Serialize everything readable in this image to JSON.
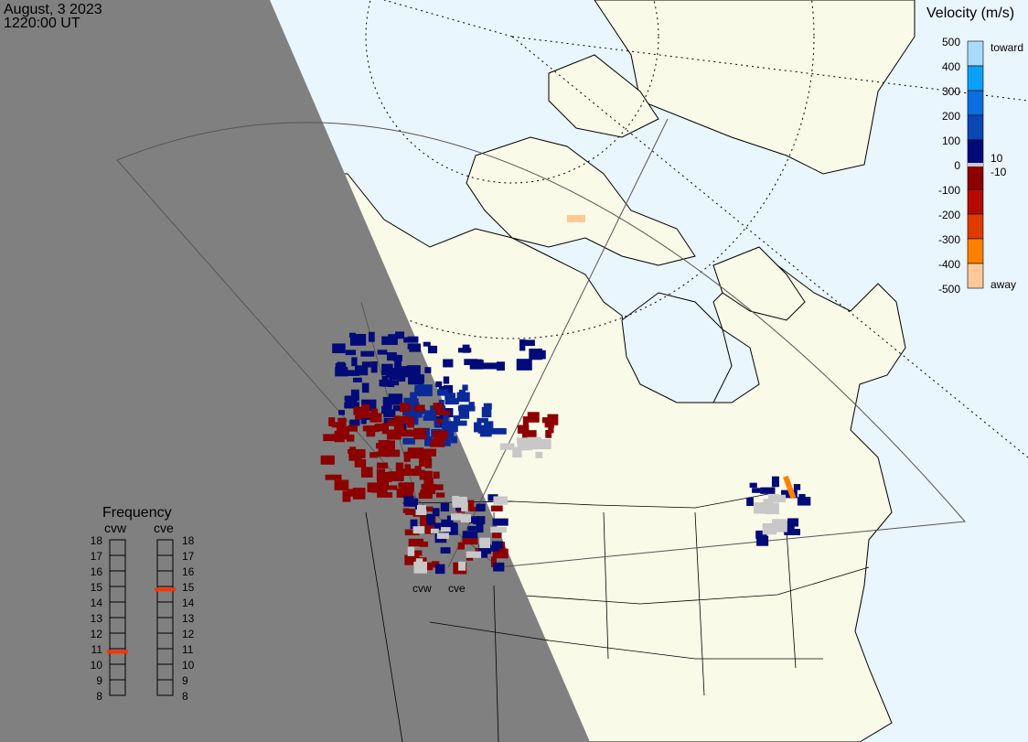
{
  "header": {
    "date": "August, 3 2023",
    "time": "1220:00 UT"
  },
  "colors": {
    "ocean": "#eaf6fd",
    "land": "#fafae8",
    "night": "#808080",
    "freq_marker": "#ff3300"
  },
  "velocity_scale": {
    "title": "Velocity (m/s)",
    "ticks": [
      "500",
      "400",
      "300",
      "200",
      "100",
      "0",
      "-100",
      "-200",
      "-300",
      "-400",
      "-500"
    ],
    "toward_label": "toward",
    "away_label": "away",
    "pos_threshold": "10",
    "neg_threshold": "-10",
    "colors": [
      "#a9dcfb",
      "#0aa0fa",
      "#0a6ee0",
      "#0a46b4",
      "#000a78",
      "#8c0000",
      "#b40a00",
      "#dc3c00",
      "#ff8000",
      "#ffc896"
    ]
  },
  "radars": [
    {
      "code": "cvw"
    },
    {
      "code": "cve"
    }
  ],
  "frequency": {
    "title": "Frequency",
    "ticks": [
      "18",
      "17",
      "16",
      "15",
      "14",
      "13",
      "12",
      "11",
      "10",
      "9",
      "8"
    ],
    "range_mhz": [
      8,
      18
    ],
    "cvw_mhz": 10.8,
    "cve_mhz": 14.8
  }
}
